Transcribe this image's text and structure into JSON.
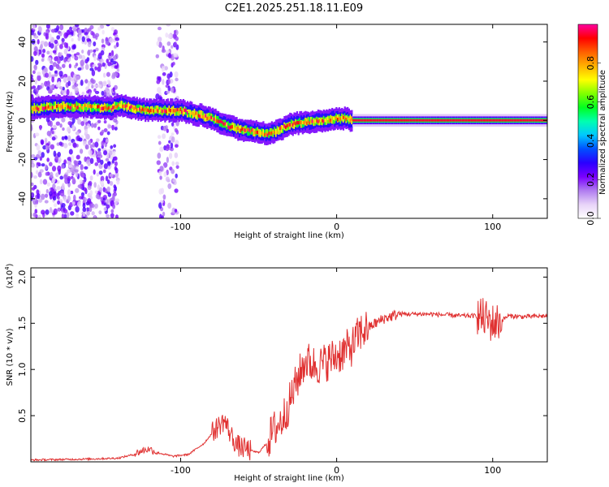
{
  "chart_data": [
    {
      "type": "heatmap",
      "title": "C2E1.2025.251.18.11.E09",
      "xlabel": "Height of straight line (km)",
      "ylabel": "Frequency (Hz)",
      "xlim": [
        -196,
        135
      ],
      "ylim": [
        -50,
        49
      ],
      "x_ticks": [
        -100,
        0,
        100
      ],
      "y_ticks": [
        -40,
        -20,
        0,
        20,
        40
      ],
      "colorbar": {
        "label": "Normalized spectral amplitude",
        "range": [
          0,
          1
        ],
        "ticks": [
          0.0,
          0.2,
          0.4,
          0.6,
          0.8
        ],
        "tick_labels": [
          "0.0",
          "0.2",
          "0.4",
          "0.6",
          "0.8"
        ],
        "colormap": [
          "#ffffff",
          "#e8d4f8",
          "#b07cf0",
          "#7a00ff",
          "#2a00ff",
          "#0050ff",
          "#00c8ff",
          "#00ffb0",
          "#00ff20",
          "#80ff00",
          "#ffff00",
          "#ffb000",
          "#ff6000",
          "#ff0000",
          "#ff00a0"
        ]
      },
      "ridge": {
        "x": [
          -196,
          -180,
          -160,
          -145,
          -140,
          -130,
          -120,
          -110,
          -100,
          -90,
          -80,
          -70,
          -60,
          -50,
          -45,
          -40,
          -35,
          -30,
          -20,
          -10,
          0,
          5,
          10,
          135
        ],
        "frequency": [
          6,
          7,
          7,
          6,
          8,
          6,
          5,
          5,
          5,
          3,
          1,
          -3,
          -5,
          -6,
          -7,
          -6,
          -4,
          -2,
          -1,
          0,
          1,
          1,
          0,
          0
        ]
      }
    },
    {
      "type": "line",
      "xlabel": "Height of straight line (km)",
      "ylabel": "SNR (10 * v/v)",
      "y_multiplier": "(x10",
      "y_multiplier_exp": "4",
      "xlim": [
        -196,
        135
      ],
      "ylim": [
        0,
        2.1
      ],
      "x_ticks": [
        -100,
        0,
        100
      ],
      "y_ticks": [
        0.5,
        1.0,
        1.5,
        2.0
      ],
      "y_tick_labels": [
        "0.5",
        "1.0",
        "1.5",
        "2.0"
      ],
      "series": [
        {
          "name": "SNR",
          "color": "#e03030",
          "x": [
            -196,
            -160,
            -140,
            -130,
            -125,
            -120,
            -115,
            -105,
            -95,
            -85,
            -78,
            -72,
            -68,
            -64,
            -60,
            -55,
            -50,
            -45,
            -40,
            -35,
            -30,
            -25,
            -20,
            -15,
            -10,
            -5,
            0,
            5,
            10,
            15,
            20,
            30,
            40,
            50,
            60,
            80,
            90,
            95,
            100,
            105,
            110,
            120,
            135
          ],
          "y": [
            0.02,
            0.03,
            0.04,
            0.08,
            0.12,
            0.14,
            0.1,
            0.06,
            0.08,
            0.2,
            0.35,
            0.45,
            0.3,
            0.18,
            0.15,
            0.12,
            0.1,
            0.2,
            0.35,
            0.45,
            0.65,
            0.9,
            1.1,
            1.05,
            1.05,
            1.1,
            1.15,
            1.2,
            1.25,
            1.4,
            1.45,
            1.55,
            1.6,
            1.6,
            1.6,
            1.58,
            1.58,
            1.55,
            1.5,
            1.52,
            1.58,
            1.57,
            1.58
          ]
        }
      ]
    }
  ]
}
